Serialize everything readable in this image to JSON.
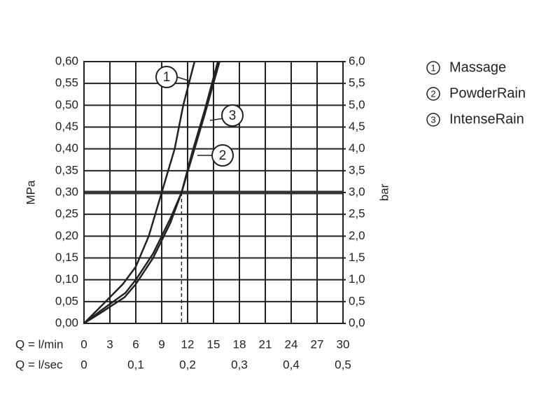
{
  "chart_data": {
    "type": "line",
    "y_label": "MPa",
    "y2_label": "bar",
    "x_label": "Q = l/min",
    "x2_label": "Q = l/sec",
    "xlim": [
      0,
      30
    ],
    "xticks": [
      0,
      3,
      6,
      9,
      12,
      15,
      18,
      21,
      24,
      27,
      30
    ],
    "x2lim": [
      0,
      0.5
    ],
    "x2ticks": [
      0,
      {
        "value": 0.1,
        "label": "0,1"
      },
      {
        "value": 0.2,
        "label": "0,2"
      },
      {
        "value": 0.3,
        "label": "0,3"
      },
      {
        "value": 0.4,
        "label": "0,4"
      },
      {
        "value": 0.5,
        "label": "0,5"
      }
    ],
    "ylim": [
      0,
      0.6
    ],
    "yticks": [
      {
        "value": 0,
        "label": "0,00"
      },
      {
        "value": 0.05,
        "label": "0,05"
      },
      {
        "value": 0.1,
        "label": "0,10"
      },
      {
        "value": 0.15,
        "label": "0,15"
      },
      {
        "value": 0.2,
        "label": "0,20"
      },
      {
        "value": 0.25,
        "label": "0,25"
      },
      {
        "value": 0.3,
        "label": "0,30"
      },
      {
        "value": 0.35,
        "label": "0,35"
      },
      {
        "value": 0.4,
        "label": "0,40"
      },
      {
        "value": 0.45,
        "label": "0,45"
      },
      {
        "value": 0.5,
        "label": "0,50"
      },
      {
        "value": 0.55,
        "label": "0,55"
      },
      {
        "value": 0.6,
        "label": "0,60"
      }
    ],
    "y2lim": [
      0,
      6
    ],
    "y2ticks": [
      {
        "value": 0,
        "label": "0,0"
      },
      {
        "value": 0.5,
        "label": "0,5"
      },
      {
        "value": 1,
        "label": "1,0"
      },
      {
        "value": 1.5,
        "label": "1,5"
      },
      {
        "value": 2,
        "label": "2,0"
      },
      {
        "value": 2.5,
        "label": "2,5"
      },
      {
        "value": 3,
        "label": "3,0"
      },
      {
        "value": 3.5,
        "label": "3,5"
      },
      {
        "value": 4,
        "label": "4,0"
      },
      {
        "value": 4.5,
        "label": "4,5"
      },
      {
        "value": 5,
        "label": "5,0"
      },
      {
        "value": 5.5,
        "label": "5,5"
      },
      {
        "value": 6,
        "label": "6,0"
      }
    ],
    "grid": true,
    "reference_y": 0.3,
    "reference_x": [
      9,
      11.3
    ],
    "series": [
      {
        "name": "Massage",
        "label": "1",
        "color": "#222",
        "x": [
          0,
          2,
          4.5,
          6,
          7.5,
          9,
          10.5,
          11.5,
          12.8
        ],
        "values": [
          0,
          0.04,
          0.09,
          0.13,
          0.2,
          0.3,
          0.4,
          0.5,
          0.6
        ]
      },
      {
        "name": "PowderRain",
        "label": "2",
        "color": "#222",
        "x": [
          0,
          2,
          4.7,
          6,
          8,
          10,
          11.3,
          12.5,
          14,
          15.7
        ],
        "values": [
          0,
          0.025,
          0.06,
          0.09,
          0.15,
          0.23,
          0.3,
          0.38,
          0.48,
          0.6
        ]
      },
      {
        "name": "IntenseRain",
        "label": "3",
        "color": "#222",
        "x": [
          0,
          2,
          4.8,
          6,
          8,
          10,
          11.3,
          12.5,
          14,
          15.5
        ],
        "values": [
          0,
          0.03,
          0.07,
          0.1,
          0.16,
          0.24,
          0.3,
          0.39,
          0.49,
          0.6
        ]
      }
    ]
  }
}
